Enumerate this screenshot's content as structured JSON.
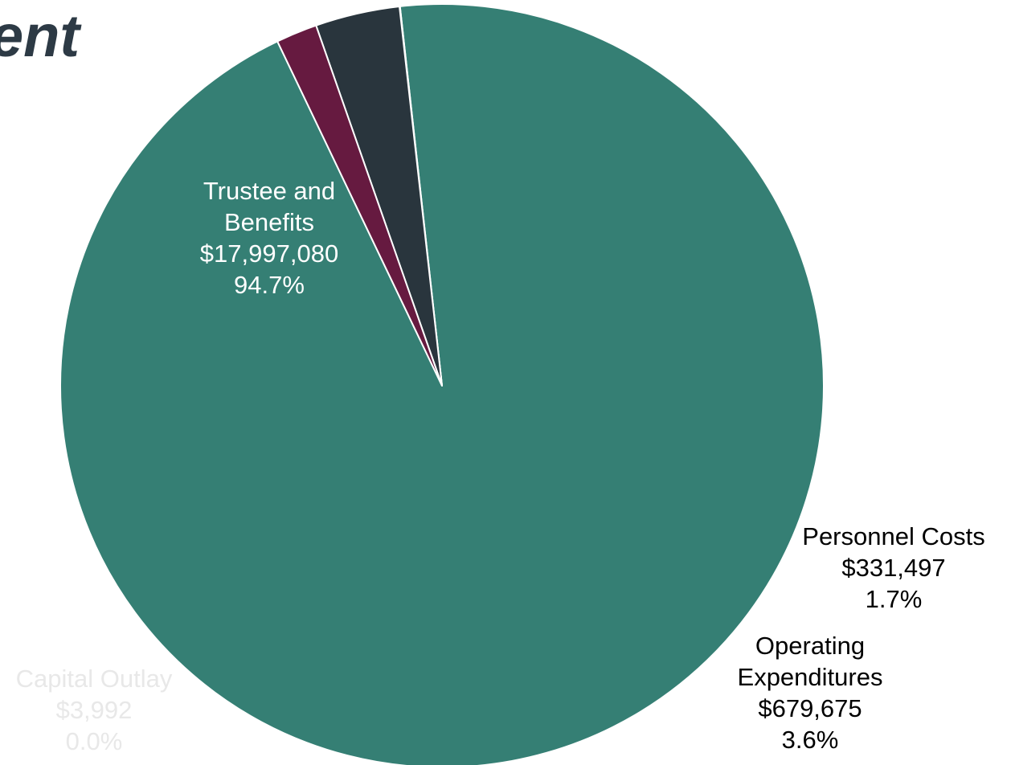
{
  "header": {
    "title_fragment": "ent"
  },
  "chart_data": {
    "type": "pie",
    "title": "",
    "start_angle_deg": 115.55,
    "direction": "counterclockwise",
    "slices": [
      {
        "name": "Trustee and Benefits",
        "label_lines": [
          "Trustee and",
          "Benefits"
        ],
        "value": 17997080,
        "value_label": "$17,997,080",
        "percent_label": "94.7%",
        "color": "#357f74",
        "label_color": "#ffffff"
      },
      {
        "name": "Capital Outlay",
        "label_lines": [
          "Capital Outlay"
        ],
        "value": 3992,
        "value_label": "$3,992",
        "percent_label": "0.0%",
        "color": "#d9dde0",
        "label_color": "#e8e8e8"
      },
      {
        "name": "Operating Expenditures",
        "label_lines": [
          "Operating",
          "Expenditures"
        ],
        "value": 679675,
        "value_label": "$679,675",
        "percent_label": "3.6%",
        "color": "#29353d",
        "label_color": "#000000"
      },
      {
        "name": "Personnel Costs",
        "label_lines": [
          "Personnel Costs"
        ],
        "value": 331497,
        "value_label": "$331,497",
        "percent_label": "1.7%",
        "color": "#661a40",
        "label_color": "#000000"
      }
    ]
  }
}
